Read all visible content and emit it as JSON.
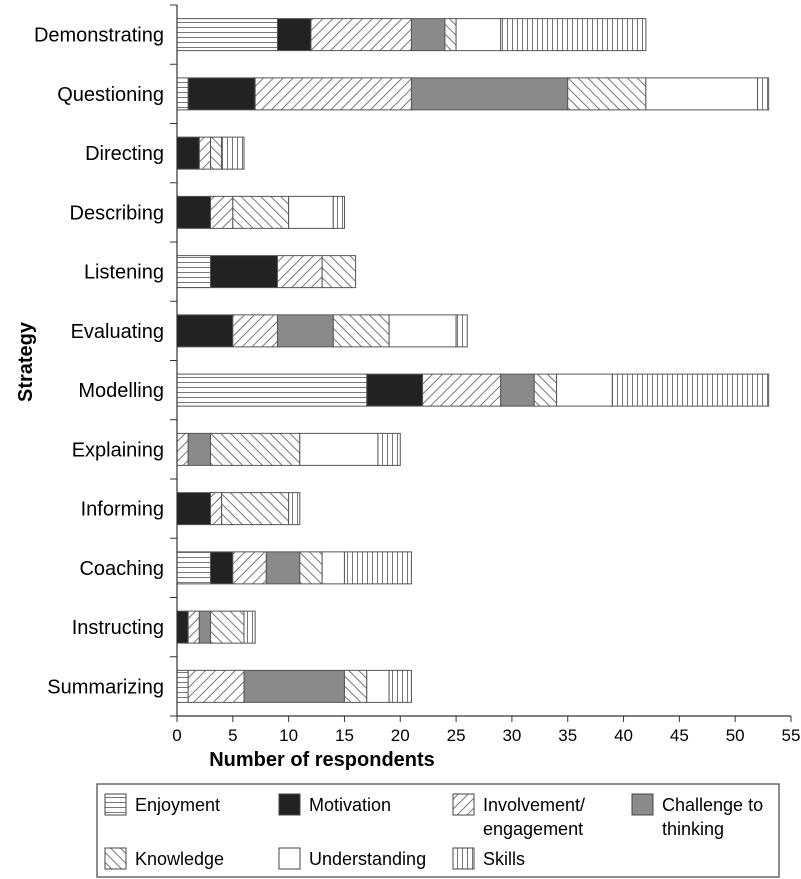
{
  "chart_data": {
    "type": "bar",
    "orientation": "horizontal",
    "stacked": true,
    "title": "",
    "xlabel": "Number of respondents",
    "ylabel": "Strategy",
    "xlim": [
      0,
      55
    ],
    "xticks": [
      "0",
      "5",
      "10",
      "15",
      "20",
      "25",
      "30",
      "35",
      "40",
      "45",
      "50",
      "55"
    ],
    "grid": false,
    "legend_position": "bottom",
    "categories": [
      "Demonstrating",
      "Questioning",
      "Directing",
      "Describing",
      "Listening",
      "Evaluating",
      "Modelling",
      "Explaining",
      "Informing",
      "Coaching",
      "Instructing",
      "Summarizing"
    ],
    "series": [
      {
        "name": "Enjoyment",
        "pattern": "horizontal-lines",
        "values": [
          9,
          1,
          0,
          0,
          3,
          0,
          17,
          0,
          0,
          3,
          0,
          1
        ]
      },
      {
        "name": "Motivation",
        "pattern": "solid-black",
        "values": [
          3,
          6,
          2,
          3,
          6,
          5,
          5,
          0,
          3,
          2,
          1,
          0
        ]
      },
      {
        "name": "Involvement/ engagement",
        "legend_lines": [
          "Involvement/",
          "engagement"
        ],
        "pattern": "diagonal-up",
        "values": [
          9,
          14,
          1,
          2,
          4,
          4,
          7,
          1,
          1,
          3,
          1,
          5
        ]
      },
      {
        "name": "Challenge to thinking",
        "legend_lines": [
          "Challenge to",
          "thinking"
        ],
        "pattern": "solid-gray",
        "values": [
          3,
          14,
          0,
          0,
          0,
          5,
          3,
          2,
          0,
          3,
          1,
          9
        ]
      },
      {
        "name": "Knowledge",
        "pattern": "diagonal-down",
        "values": [
          1,
          7,
          1,
          5,
          3,
          5,
          2,
          8,
          6,
          2,
          3,
          2
        ]
      },
      {
        "name": "Understanding",
        "pattern": "white",
        "values": [
          4,
          10,
          0,
          4,
          0,
          6,
          5,
          7,
          0,
          2,
          0,
          2
        ]
      },
      {
        "name": "Skills",
        "pattern": "vertical-lines",
        "values": [
          13,
          1,
          2,
          1,
          0,
          1,
          14,
          2,
          1,
          6,
          1,
          2
        ]
      }
    ],
    "colors": {
      "axis": "#333333",
      "bar_edge": "#555555",
      "motivation_fill": "#222222",
      "challenge_fill": "#8a8a8a",
      "pattern_line": "#777777"
    }
  }
}
